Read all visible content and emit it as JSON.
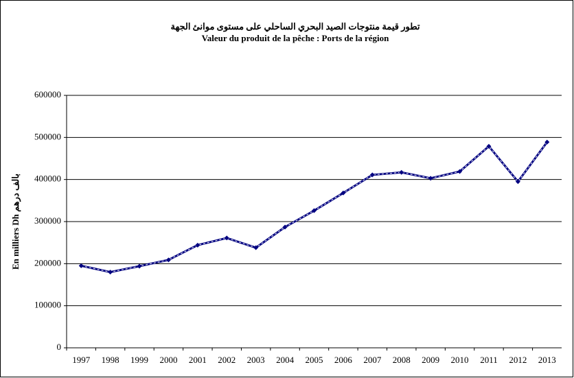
{
  "chart_data": {
    "type": "line",
    "title": "تطور قيمة منتوجات الصيد البحري الساحلي على مستوى موانئ الجهة",
    "subtitle": "Valeur  du produit de la pêche : Ports de la région",
    "y_label": "En milliers Dh بالف درهم",
    "categories": [
      "1997",
      "1998",
      "1999",
      "2000",
      "2001",
      "2002",
      "2003",
      "2004",
      "2005",
      "2006",
      "2007",
      "2008",
      "2009",
      "2010",
      "2011",
      "2012",
      "2013"
    ],
    "series": [
      {
        "color": "#000080",
        "values": [
          195000,
          180000,
          194000,
          209000,
          244000,
          261000,
          238000,
          287000,
          326000,
          368000,
          411000,
          417000,
          403000,
          419000,
          479000,
          395000,
          489000
        ]
      }
    ],
    "ylim": [
      0,
      600000
    ],
    "yticks": [
      0,
      100000,
      200000,
      300000,
      400000,
      500000,
      600000
    ],
    "grid": true
  }
}
